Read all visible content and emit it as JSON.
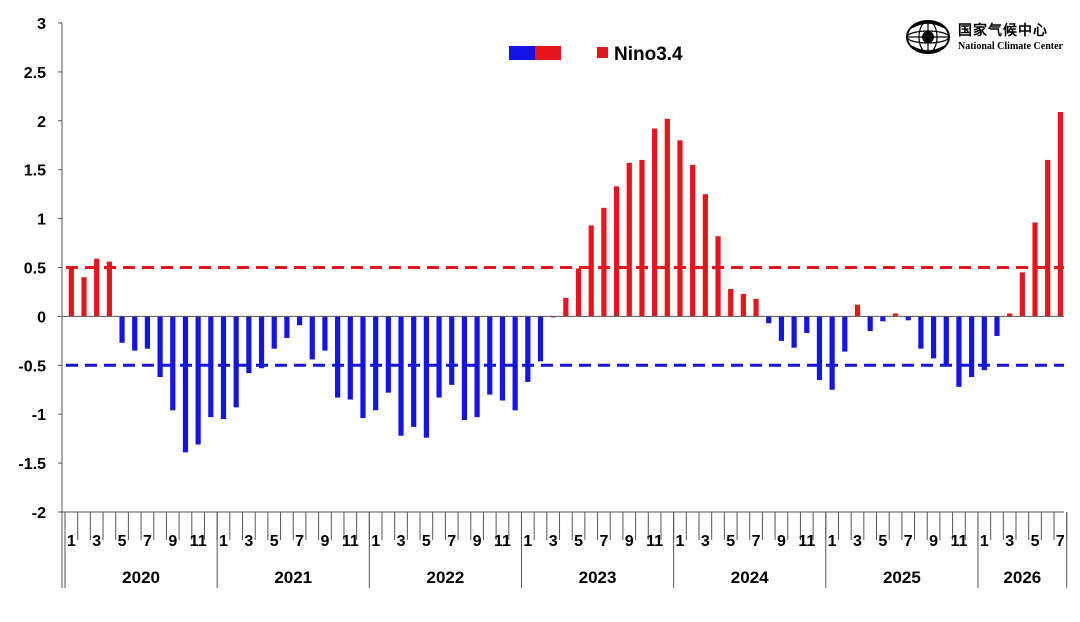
{
  "chart_data": {
    "type": "bar",
    "legend": {
      "swatch_series": "",
      "series_name": "Nino3.4",
      "position": "top-center"
    },
    "ylim": [
      -2,
      3
    ],
    "yticks": [
      "3",
      "2.5",
      "2",
      "1.5",
      "1",
      "0.5",
      "0",
      "-0.5",
      "-1",
      "-1.5",
      "-2"
    ],
    "thresholds": [
      {
        "value": 0.5,
        "color": "#e8141b",
        "style": "dashed"
      },
      {
        "value": -0.5,
        "color": "#1414d8",
        "style": "dashed"
      }
    ],
    "colors": {
      "positive": "#e8141b",
      "negative": "#1414e8"
    },
    "years": [
      "2020",
      "2021",
      "2022",
      "2023",
      "2024",
      "2025",
      "2026"
    ],
    "month_ticks": [
      "1",
      "3",
      "5",
      "7",
      "9",
      "11"
    ],
    "month_ticks_last_year": [
      "1",
      "3",
      "5",
      "7"
    ],
    "values": [
      0.51,
      0.4,
      0.59,
      0.56,
      -0.27,
      -0.35,
      -0.33,
      -0.62,
      -0.96,
      -1.39,
      -1.31,
      -1.03,
      -1.05,
      -0.93,
      -0.58,
      -0.53,
      -0.33,
      -0.22,
      -0.09,
      -0.44,
      -0.35,
      -0.83,
      -0.85,
      -1.04,
      -0.96,
      -0.78,
      -1.22,
      -1.13,
      -1.24,
      -0.83,
      -0.7,
      -1.06,
      -1.03,
      -0.8,
      -0.86,
      -0.96,
      -0.67,
      -0.46,
      0.0,
      0.19,
      0.49,
      0.93,
      1.11,
      1.33,
      1.57,
      1.6,
      1.92,
      2.02,
      1.8,
      1.55,
      1.25,
      0.82,
      0.28,
      0.23,
      0.18,
      -0.07,
      -0.25,
      -0.32,
      -0.17,
      -0.65,
      -0.75,
      -0.36,
      0.12,
      -0.15,
      -0.05,
      0.03,
      -0.04,
      -0.33,
      -0.43,
      -0.51,
      -0.72,
      -0.62,
      -0.55,
      -0.2,
      0.03,
      0.45,
      0.96,
      1.6,
      2.09
    ]
  },
  "logo": {
    "cn_text": "国家气候中心",
    "en_text": "National Climate Center",
    "icon": "ncc-globe-logo-icon"
  }
}
